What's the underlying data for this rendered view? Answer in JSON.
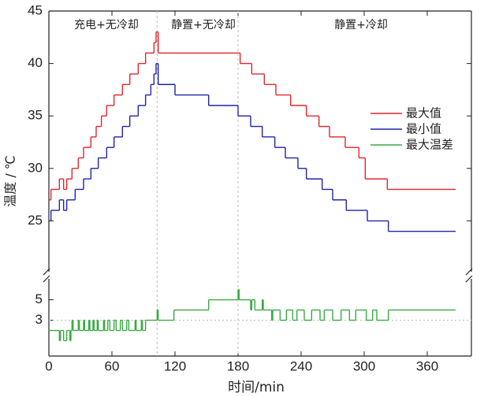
{
  "chart_data": {
    "type": "step-line",
    "annotations": [
      "充电+无冷却",
      "静置+无冷却",
      "静置+冷却"
    ],
    "xlabel": "时间/min",
    "ylabel": "温度 / ℃",
    "xlim": [
      0,
      402
    ],
    "xticks": [
      0,
      60,
      120,
      180,
      240,
      300,
      360
    ],
    "ylim": [
      20,
      45
    ],
    "yticks": [
      25,
      30,
      35,
      40,
      45
    ],
    "y2lim": [
      -0.5,
      7.2
    ],
    "y2ticks": [
      3,
      5
    ],
    "vlines": [
      103,
      180
    ],
    "y2_hline": 3,
    "series": [
      {
        "name": "最大值",
        "color": "#e0262a",
        "x": [
          0,
          2,
          10,
          14,
          17,
          22,
          28,
          33,
          40,
          45,
          50,
          55,
          62,
          70,
          77,
          85,
          92,
          100,
          102,
          104,
          182,
          193,
          205,
          216,
          230,
          245,
          257,
          267,
          282,
          295,
          301,
          322,
          387
        ],
        "values": [
          27,
          28,
          29,
          28,
          29,
          30,
          31,
          32,
          33,
          34,
          35,
          36,
          37,
          38,
          39,
          40,
          41,
          42,
          43,
          41,
          40,
          39,
          38,
          37,
          36,
          35,
          34,
          33,
          32,
          31,
          29,
          28,
          28
        ]
      },
      {
        "name": "最小值",
        "color": "#1f24a8",
        "x": [
          0,
          2,
          10,
          14,
          17,
          25,
          33,
          40,
          47,
          55,
          62,
          70,
          77,
          85,
          92,
          97,
          100,
          102,
          104,
          120,
          152,
          180,
          192,
          203,
          215,
          225,
          237,
          245,
          260,
          270,
          283,
          303,
          323,
          387
        ],
        "values": [
          25,
          26,
          27,
          26,
          27,
          28,
          29,
          30,
          31,
          32,
          33,
          34,
          35,
          36,
          37,
          38,
          39,
          40,
          38,
          37,
          36,
          35,
          34,
          33,
          32,
          31,
          30,
          29,
          28,
          27,
          26,
          25,
          24,
          24
        ]
      },
      {
        "name": "最大温差",
        "color": "#3aaa45",
        "axis": "y2",
        "x": [
          0,
          10,
          11,
          14,
          17,
          20,
          21,
          22,
          23,
          28,
          29,
          33,
          34,
          38,
          39,
          42,
          43,
          46,
          47,
          52,
          53,
          56,
          58,
          62,
          64,
          68,
          70,
          74,
          76,
          82,
          83,
          88,
          89,
          92,
          103,
          104,
          119,
          152,
          180,
          181,
          192,
          193,
          196,
          203,
          204,
          212,
          213,
          220,
          226,
          232,
          236,
          243,
          250,
          258,
          262,
          270,
          278,
          286,
          292,
          302,
          308,
          312,
          322,
          323,
          387
        ],
        "values": [
          2,
          1,
          2,
          1,
          2,
          1,
          2,
          3,
          2,
          3,
          2,
          3,
          2,
          3,
          2,
          3,
          2,
          3,
          2,
          3,
          2,
          3,
          2,
          3,
          2,
          3,
          2,
          3,
          2,
          3,
          2,
          3,
          2,
          3,
          4,
          3,
          4,
          5,
          6,
          5,
          4,
          5,
          4,
          5,
          4,
          3,
          4,
          3,
          4,
          3,
          4,
          3,
          4,
          3,
          4,
          3,
          4,
          3,
          4,
          3,
          4,
          3,
          3,
          4,
          4
        ]
      }
    ]
  }
}
